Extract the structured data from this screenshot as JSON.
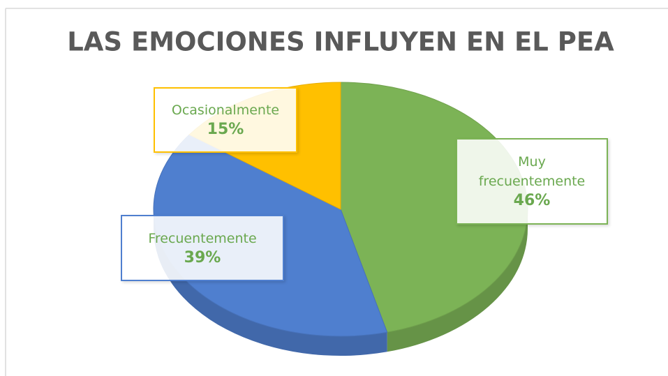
{
  "chart_data": {
    "type": "pie",
    "title": "LAS EMOCIONES INFLUYEN EN EL PEA",
    "categories": [
      "Muy frecuentemente",
      "Frecuentemente",
      "Ocasionalmente"
    ],
    "values": [
      46,
      39,
      15
    ],
    "value_labels": [
      "46%",
      "39%",
      "15%"
    ],
    "colors": [
      "#7cb356",
      "#4f7fcf",
      "#ffc000"
    ]
  }
}
